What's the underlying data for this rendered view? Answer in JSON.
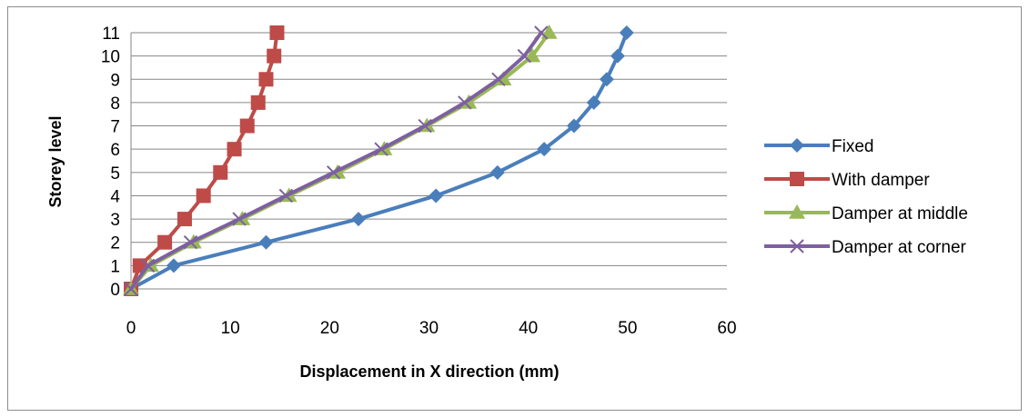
{
  "chart_data": {
    "type": "line",
    "title": "",
    "xlabel": "Displacement in X direction  (mm)",
    "ylabel": "Storey  level",
    "xlim": [
      0,
      60
    ],
    "ylim": [
      0,
      11
    ],
    "x_ticks": [
      "0",
      "10",
      "20",
      "30",
      "40",
      "50",
      "60"
    ],
    "y_ticks": [
      "0",
      "1",
      "2",
      "3",
      "4",
      "5",
      "6",
      "7",
      "8",
      "9",
      "10",
      "11"
    ],
    "grid": "horizontal",
    "legend_position": "right",
    "storeys": [
      0,
      1,
      2,
      3,
      4,
      5,
      6,
      7,
      8,
      9,
      10,
      11
    ],
    "series": [
      {
        "name": "Fixed",
        "color": "#4a7ebb",
        "marker": "diamond",
        "x": [
          0,
          4.3,
          13.6,
          22.9,
          30.7,
          36.9,
          41.6,
          44.6,
          46.6,
          47.9,
          49.0,
          49.9
        ]
      },
      {
        "name": "With damper",
        "color": "#be4b48",
        "marker": "square",
        "x": [
          0,
          0.9,
          3.4,
          5.4,
          7.3,
          9.0,
          10.4,
          11.7,
          12.8,
          13.6,
          14.4,
          14.7
        ]
      },
      {
        "name": "Damper at middle",
        "color": "#98b954",
        "marker": "triangle",
        "x": [
          0,
          2.0,
          6.3,
          11.2,
          15.9,
          20.8,
          25.5,
          29.8,
          34.0,
          37.5,
          40.4,
          42.1
        ]
      },
      {
        "name": "Damper at corner",
        "color": "#7d60a0",
        "marker": "x",
        "x": [
          0,
          1.7,
          6.0,
          10.9,
          15.6,
          20.4,
          25.2,
          29.6,
          33.6,
          37.0,
          39.6,
          41.3
        ]
      }
    ]
  }
}
